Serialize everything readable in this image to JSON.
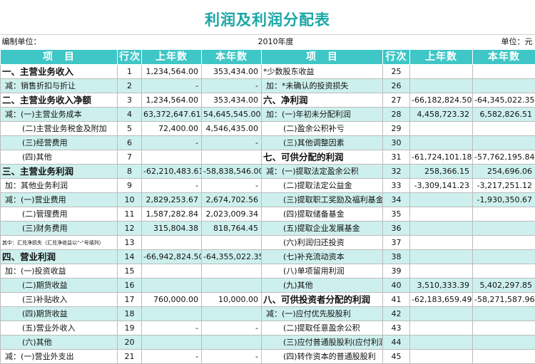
{
  "title": "利润及利润分配表",
  "meta": {
    "unit_label": "编制单位：",
    "year": "2010年度",
    "currency": "单位：元"
  },
  "headers": [
    "项　目",
    "行次",
    "上年数",
    "本年数",
    "项　目",
    "行次",
    "上年数",
    "本年数"
  ],
  "rows": [
    [
      "一、主营业务收入",
      "1",
      "1,234,564.00",
      "353,434.00",
      "*少数股东收益",
      "25",
      "",
      ""
    ],
    [
      "减：销售折扣与折让",
      "2",
      "-",
      "-",
      "加：*未确认的投资损失",
      "26",
      "",
      ""
    ],
    [
      "二、主营业务收入净额",
      "3",
      "1,234,564.00",
      "353,434.00",
      "六、净利润",
      "27",
      "-66,182,824.50",
      "-64,345,022.35"
    ],
    [
      "减：(一)主营业务成本",
      "4",
      "63,372,647.61",
      "54,645,545.00",
      "加：(一)年初未分配利润",
      "28",
      "4,458,723.32",
      "6,582,826.51"
    ],
    [
      "(二)主营业务税金及附加",
      "5",
      "72,400.00",
      "4,546,435.00",
      "(二)盈余公积补亏",
      "29",
      "",
      ""
    ],
    [
      "(三)经营费用",
      "6",
      "-",
      "-",
      "(三)其他调整因素",
      "30",
      "",
      ""
    ],
    [
      "(四)其他",
      "7",
      "",
      "",
      "七、可供分配的利润",
      "31",
      "-61,724,101.18",
      "-57,762,195.84"
    ],
    [
      "三、主营业务利润",
      "8",
      "-62,210,483.61",
      "-58,838,546.00",
      "减：(一)提取法定盈余公积",
      "32",
      "258,366.15",
      "254,696.06"
    ],
    [
      "加：其他业务利润",
      "9",
      "-",
      "-",
      "(二)提取法定公益金",
      "33",
      "-3,309,141.23",
      "-3,217,251.12"
    ],
    [
      "减：(一)营业费用",
      "10",
      "2,829,253.67",
      "2,674,702.56",
      "(三)提取职工奖励及福利基金",
      "34",
      "",
      "-1,930,350.67"
    ],
    [
      "(二)管理费用",
      "11",
      "1,587,282.84",
      "2,023,009.34",
      "(四)提取储备基金",
      "35",
      "",
      ""
    ],
    [
      "(三)财务费用",
      "12",
      "315,804.38",
      "818,764.45",
      "(五)提取企业发展基金",
      "36",
      "",
      ""
    ],
    [
      "其中：汇兑净损失（汇兑净收益以“-”号填列）",
      "13",
      "",
      "",
      "(六)利润归还投资",
      "37",
      "",
      ""
    ],
    [
      "四、营业利润",
      "14",
      "-66,942,824.50",
      "-64,355,022.35",
      "(七)补充流动资本",
      "38",
      "",
      ""
    ],
    [
      "加：(一)投资收益",
      "15",
      "",
      "",
      "(八)单项留用利润",
      "39",
      "",
      ""
    ],
    [
      "(二)期货收益",
      "16",
      "",
      "",
      "(九)其他",
      "40",
      "3,510,333.39",
      "5,402,297.85"
    ],
    [
      "(三)补贴收入",
      "17",
      "760,000.00",
      "10,000.00",
      "八、可供投资者分配的利润",
      "41",
      "-62,183,659.49",
      "-58,271,587.96"
    ],
    [
      "(四)期货收益",
      "18",
      "",
      "",
      "减：(一)应付优先股股利",
      "42",
      "",
      ""
    ],
    [
      "(五)营业外收入",
      "19",
      "-",
      "-",
      "(二)提取任意盈余公积",
      "43",
      "",
      ""
    ],
    [
      "(六)其他",
      "20",
      "",
      "",
      "(三)应付普通股股利(应付利润)",
      "44",
      "",
      ""
    ],
    [
      "减：(一)营业外支出",
      "21",
      "-",
      "-",
      "(四)转作资本的普通股股利",
      "45",
      "",
      ""
    ]
  ]
}
